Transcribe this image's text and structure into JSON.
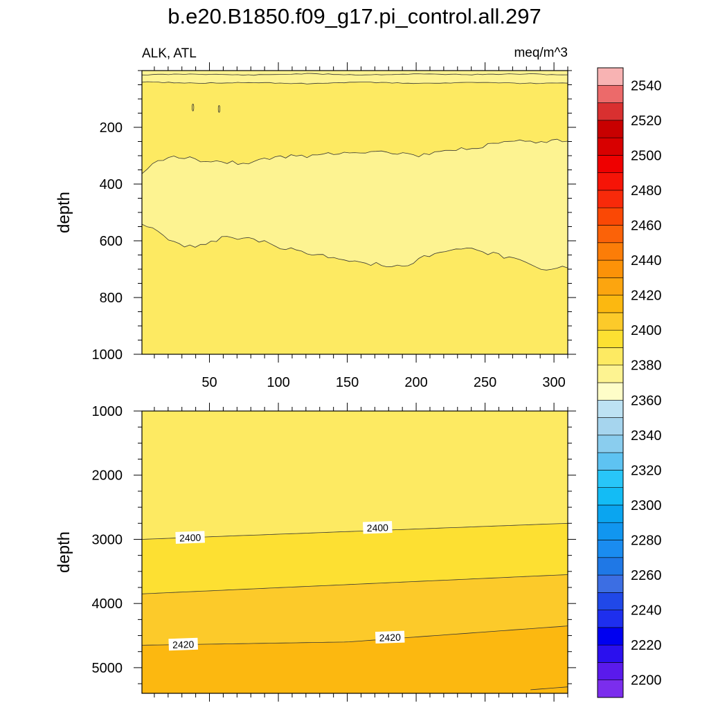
{
  "chart_data": {
    "type": "contour",
    "title": "b.e20.B1850.f09_g17.pi_control.all.297",
    "variable_label": "ALK, ATL",
    "units_label": "meq/m^3",
    "x": {
      "min": 1,
      "max": 310,
      "ticks": [
        50,
        100,
        150,
        200,
        250,
        300
      ]
    },
    "panels": [
      {
        "name": "upper",
        "ylabel": "depth",
        "ylim": [
          1000,
          0
        ],
        "yticks": [
          200,
          400,
          600,
          800,
          1000
        ],
        "regions": [
          {
            "level": "2380-2390",
            "color": "#fdf391"
          },
          {
            "level": "2390-2400",
            "color": "#fdea62"
          }
        ],
        "contours": [
          {
            "level": 2390,
            "x": [
              1,
              40,
              80,
              120,
              160,
              200,
              240,
              280,
              310
            ],
            "depth": [
              15,
              12,
              16,
              11,
              15,
              12,
              14,
              12,
              15
            ]
          },
          {
            "level": 2390,
            "x": [
              1,
              40,
              80,
              120,
              160,
              200,
              240,
              280,
              310
            ],
            "depth": [
              40,
              44,
              42,
              46,
              41,
              45,
              42,
              45,
              44
            ]
          },
          {
            "level": 2390,
            "x": [
              1,
              10,
              25,
              50,
              75,
              100,
              125,
              150,
              175,
              200,
              225,
              250,
              275,
              290,
              310
            ],
            "depth": [
              370,
              325,
              300,
              320,
              325,
              305,
              300,
              285,
              285,
              300,
              285,
              265,
              250,
              255,
              245
            ]
          },
          {
            "level": 2390,
            "x": [
              1,
              10,
              25,
              40,
              60,
              80,
              100,
              125,
              150,
              175,
              190,
              210,
              230,
              250,
              275,
              290,
              310
            ],
            "depth": [
              545,
              560,
              610,
              625,
              590,
              590,
              620,
              645,
              670,
              685,
              690,
              650,
              625,
              640,
              670,
              700,
              690
            ]
          }
        ],
        "small_contours": [
          {
            "x": 38,
            "depth": 130
          },
          {
            "x": 57,
            "depth": 135
          }
        ]
      },
      {
        "name": "lower",
        "ylabel": "depth",
        "ylim": [
          5400,
          1000
        ],
        "yticks": [
          1000,
          2000,
          3000,
          4000,
          5000
        ],
        "regions": [
          {
            "level": "2390-2400",
            "color": "#fdea62"
          },
          {
            "level": "2400-2410",
            "color": "#fde032"
          },
          {
            "level": "2410-2420",
            "color": "#fcca2a"
          },
          {
            "level": "2420-2430",
            "color": "#fcb810"
          }
        ],
        "contours": [
          {
            "level": 2400,
            "x": [
              1,
              310
            ],
            "depth": [
              3000,
              2750
            ]
          },
          {
            "level": 2410,
            "x": [
              1,
              310
            ],
            "depth": [
              3850,
              3550
            ]
          },
          {
            "level": 2420,
            "x": [
              1,
              150,
              310
            ],
            "depth": [
              4650,
              4600,
              4350
            ]
          },
          {
            "level": 2430,
            "x": [
              280,
              310
            ],
            "depth": [
              5350,
              5300
            ]
          }
        ],
        "labels": [
          {
            "text": "2400",
            "x": 36,
            "depth": 2975
          },
          {
            "text": "2400",
            "x": 172,
            "depth": 2820
          },
          {
            "text": "2420",
            "x": 31,
            "depth": 4640
          },
          {
            "text": "2420",
            "x": 181,
            "depth": 4530
          }
        ]
      }
    ],
    "colorbar": {
      "levels": [
        2200,
        2210,
        2220,
        2230,
        2240,
        2250,
        2260,
        2270,
        2280,
        2290,
        2300,
        2310,
        2320,
        2330,
        2340,
        2350,
        2360,
        2370,
        2380,
        2390,
        2400,
        2410,
        2420,
        2430,
        2440,
        2450,
        2460,
        2470,
        2480,
        2490,
        2500,
        2510,
        2520,
        2530,
        2540,
        2550
      ],
      "labels": [
        "2200",
        "2220",
        "2240",
        "2260",
        "2280",
        "2300",
        "2320",
        "2340",
        "2360",
        "2380",
        "2400",
        "2420",
        "2440",
        "2460",
        "2480",
        "2500",
        "2520",
        "2540"
      ],
      "colors": [
        "#7b2ded",
        "#5a1aec",
        "#2b10ee",
        "#0000f0",
        "#1e2fee",
        "#2048e8",
        "#3c6ee3",
        "#1f78e6",
        "#1a8cf0",
        "#1196f0",
        "#0aa5f0",
        "#13bcf5",
        "#28c6f8",
        "#5ec3f2",
        "#8acdee",
        "#a6d5ee",
        "#bde2f3",
        "#fefdc8",
        "#fdf391",
        "#fdea62",
        "#fde032",
        "#fcca2a",
        "#fcb810",
        "#fca50f",
        "#fc9208",
        "#fc7d08",
        "#fb6208",
        "#fa4805",
        "#f82a0a",
        "#f61407",
        "#ef0000",
        "#d80000",
        "#c80000",
        "#d93030",
        "#ec6a6a",
        "#f8b3b3"
      ]
    }
  }
}
